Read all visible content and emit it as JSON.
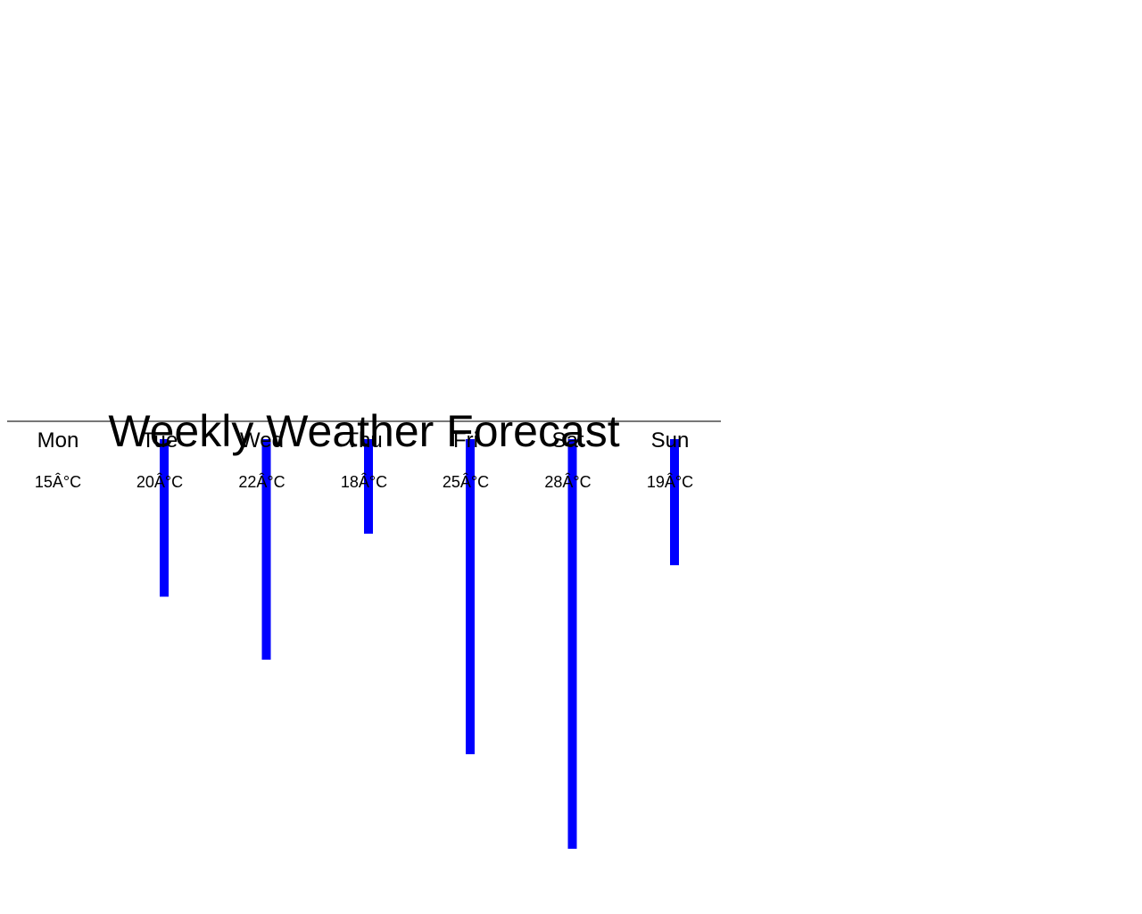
{
  "chart_data": {
    "type": "bar",
    "title": "Weekly Weather Forecast",
    "categories": [
      "Mon",
      "Tue",
      "Wed",
      "Thu",
      "Fri",
      "Sat",
      "Sun"
    ],
    "values": [
      15,
      20,
      22,
      18,
      25,
      28,
      19
    ],
    "value_labels": [
      "15Â°C",
      "20Â°C",
      "22Â°C",
      "18Â°C",
      "25Â°C",
      "28Â°C",
      "19Â°C"
    ],
    "bar_color": "#0000ff",
    "axis_color": "#777777",
    "orientation": "downward from baseline"
  }
}
